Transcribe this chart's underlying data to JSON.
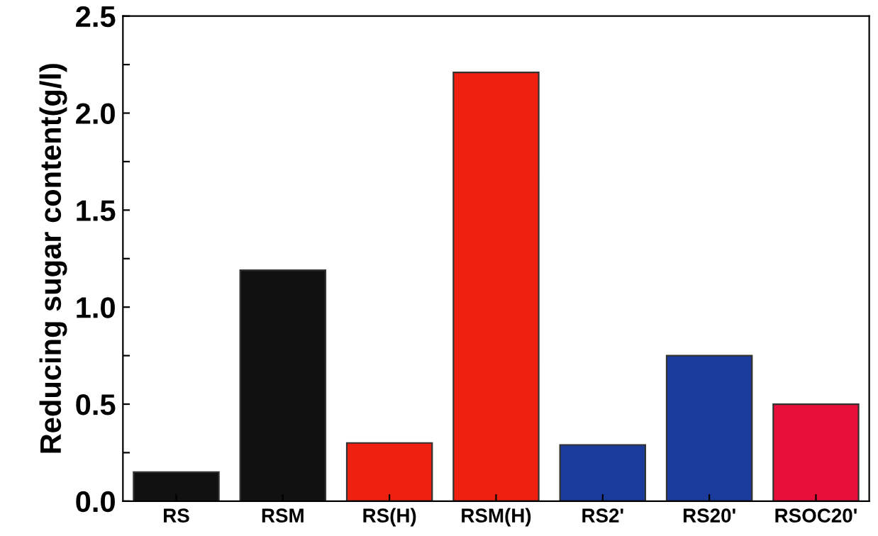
{
  "chart_data": {
    "type": "bar",
    "ylabel": "Reducing sugar content(g/l)",
    "categories": [
      "RS",
      "RSM",
      "RS(H)",
      "RSM(H)",
      "RS2'",
      "RS20'",
      "RSOC20'"
    ],
    "values": [
      0.15,
      1.19,
      0.3,
      2.21,
      0.29,
      0.75,
      0.5
    ],
    "colors": [
      "#111111",
      "#111111",
      "#f02010",
      "#f02010",
      "#1a3a9c",
      "#1a3a9c",
      "#e8103a"
    ],
    "ylim": [
      0,
      2.5
    ],
    "yticks": [
      {
        "value": 0,
        "label": "0.0"
      },
      {
        "value": 0.25,
        "label": null
      },
      {
        "value": 0.5,
        "label": "0.5"
      },
      {
        "value": 0.75,
        "label": null
      },
      {
        "value": 1.0,
        "label": "1.0"
      },
      {
        "value": 1.25,
        "label": null
      },
      {
        "value": 1.5,
        "label": "1.5"
      },
      {
        "value": 1.75,
        "label": null
      },
      {
        "value": 2.0,
        "label": "2.0"
      },
      {
        "value": 2.25,
        "label": null
      },
      {
        "value": 2.5,
        "label": "2.5"
      }
    ],
    "grid": false
  }
}
